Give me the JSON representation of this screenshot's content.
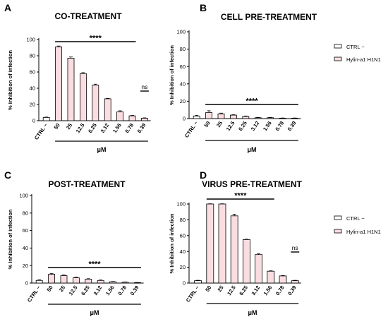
{
  "figure": {
    "legend": {
      "entries": [
        "CTRL −",
        "Hylin-a1 H1N1"
      ],
      "colors": {
        "ctrl": "#ffffff",
        "hylin": "#f9dde0",
        "edge": "#000000"
      }
    }
  },
  "chart_data": [
    {
      "type": "bar",
      "panel": "A",
      "title": "CO-TREATMENT",
      "ylabel": "% Inhibition of infection",
      "xunit": "μM",
      "ylim": [
        0,
        100
      ],
      "yticks": [
        0,
        20,
        40,
        60,
        80,
        100
      ],
      "categories": [
        "CTRL −",
        "50",
        "25",
        "12.5",
        "6.25",
        "3.12",
        "1.56",
        "0.78",
        "0.39"
      ],
      "values": [
        4,
        91,
        77,
        58,
        44,
        27,
        11,
        6,
        3
      ],
      "errors": [
        0.5,
        1,
        1.5,
        1.2,
        1,
        0.6,
        1.2,
        0.5,
        0.5
      ],
      "significance": [
        {
          "label": "****",
          "from": 1,
          "to": 7
        },
        {
          "label": "ns",
          "from": 8,
          "to": 8
        }
      ]
    },
    {
      "type": "bar",
      "panel": "B",
      "title": "CELL PRE-TREATMENT",
      "ylabel": "% Inhibition of infection",
      "xunit": "μM",
      "ylim": [
        0,
        100
      ],
      "yticks": [
        0,
        20,
        40,
        60,
        80,
        100
      ],
      "categories": [
        "CTRL −",
        "50",
        "25",
        "12.5",
        "6.25",
        "3.12",
        "1.56",
        "0.78",
        "0.39"
      ],
      "values": [
        3,
        7,
        5.5,
        4,
        2.5,
        1,
        1,
        0.5,
        0.5
      ],
      "errors": [
        0.8,
        2,
        0.8,
        0.5,
        0.5,
        0.3,
        0.3,
        0.2,
        0.2
      ],
      "significance": [
        {
          "label": "****",
          "from": 1,
          "to": 8
        }
      ]
    },
    {
      "type": "bar",
      "panel": "C",
      "title": "POST-TREATMENT",
      "ylabel": "% Inhibition of infection",
      "xunit": "μM",
      "ylim": [
        0,
        100
      ],
      "yticks": [
        0,
        20,
        40,
        60,
        80,
        100
      ],
      "categories": [
        "CTRL −",
        "50",
        "25",
        "12.5",
        "6.25",
        "3.12",
        "1.56",
        "0.78",
        "0.39"
      ],
      "values": [
        3,
        10,
        8.5,
        6,
        4.5,
        3,
        1.5,
        1,
        0.5
      ],
      "errors": [
        0.8,
        0.8,
        0.8,
        0.8,
        0.5,
        0.5,
        0.3,
        0.3,
        0.2
      ],
      "significance": [
        {
          "label": "****",
          "from": 1,
          "to": 8
        }
      ]
    },
    {
      "type": "bar",
      "panel": "D",
      "title": "VIRUS PRE-TREATMENT",
      "ylabel": "% Inhibition of infection",
      "xunit": "μM",
      "ylim": [
        0,
        100
      ],
      "yticks": [
        0,
        20,
        40,
        60,
        80,
        100
      ],
      "categories": [
        "CTRL −",
        "50",
        "25",
        "12.5",
        "6.25",
        "3.12",
        "1.56",
        "0.78",
        "0.39"
      ],
      "values": [
        3,
        100,
        100,
        85,
        55,
        36,
        15,
        9,
        3
      ],
      "errors": [
        0.5,
        0.3,
        0.3,
        2,
        0.5,
        1,
        0.5,
        0.5,
        0.5
      ],
      "significance": [
        {
          "label": "****",
          "from": 1,
          "to": 6
        },
        {
          "label": "ns",
          "from": 8,
          "to": 8
        }
      ]
    }
  ]
}
